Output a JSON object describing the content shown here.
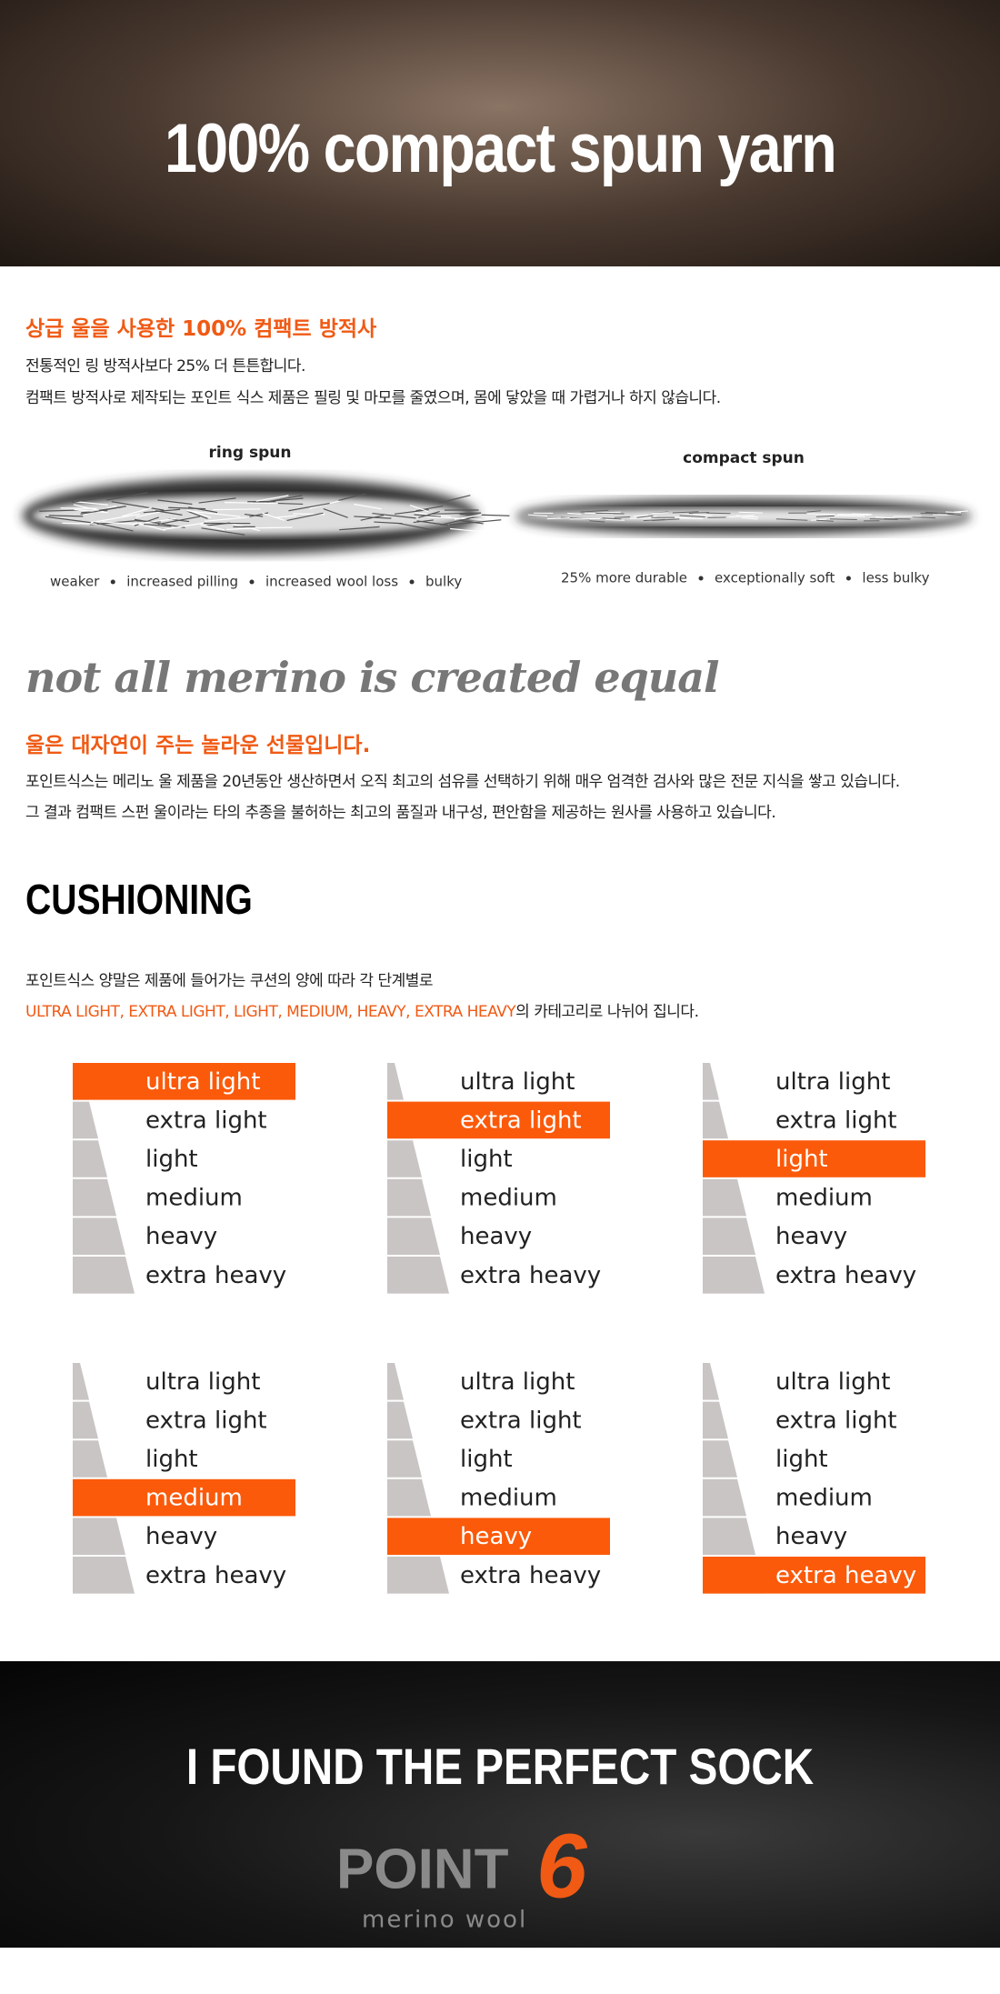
{
  "hero": {
    "title": "100% compact spun yarn"
  },
  "yarn_section": {
    "heading": "상급 울을 사용한 100% 컴팩트 방적사",
    "lines": [
      "전통적인 링 방적사보다 25% 더 튼튼합니다.",
      "컴팩트 방적사로 제작되는 포인트 식스 제품은 필링 및 마모를 줄였으며, 몸에 닿았을 때 가렵거나 하지 않습니다."
    ],
    "ring": {
      "label": "ring spun",
      "captions": [
        "weaker",
        "increased pilling",
        "increased wool loss",
        "bulky"
      ]
    },
    "compact": {
      "label": "compact spun",
      "captions": [
        "25% more durable",
        "exceptionally soft",
        "less bulky"
      ]
    }
  },
  "merino_section": {
    "tagline": "not all merino is created equal",
    "heading": "울은 대자연이 주는 놀라운 선물입니다.",
    "lines": [
      "포인트식스는 메리노 울 제품을 20년동안 생산하면서 오직 최고의 섬유를 선택하기 위해 매우 엄격한 검사와 많은 전문 지식을 쌓고 있습니다.",
      "그 결과 컴팩트 스펀 울이라는 타의 추종을 불허하는 최고의 품질과 내구성, 편안함을 제공하는 원사를 사용하고 있습니다."
    ]
  },
  "cushioning": {
    "title": "CUSHIONING",
    "line1": "포인트식스 양말은 제품에 들어가는 쿠션의 양에 따라 각 단계별로",
    "line2_highlight": "ULTRA LIGHT, EXTRA LIGHT, LIGHT, MEDIUM, HEAVY, EXTRA HEAVY",
    "line2_rest": "의 카테고리로 나뉘어 집니다.",
    "levels": [
      "ultra light",
      "extra light",
      "light",
      "medium",
      "heavy",
      "extra heavy"
    ],
    "selected": [
      0,
      1,
      2,
      3,
      4,
      5
    ]
  },
  "footer": {
    "slogan": "I FOUND THE PERFECT SOCK",
    "logo_word": "POINT",
    "logo_number": "6",
    "logo_sub": "merino wool"
  }
}
